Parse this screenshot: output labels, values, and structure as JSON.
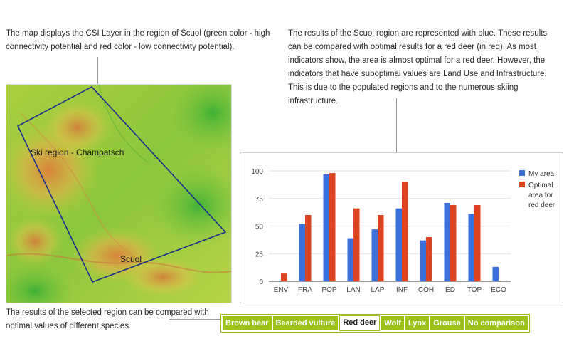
{
  "text": {
    "left_description": "The map displays the CSI Layer in the region of Scuol (green color - high connectivity potential and red color - low connectivity potential).",
    "right_description": "The results of the Scuol region are represented with blue. These results can be compared with optimal results for a red deer (in red). As most indicators show, the area is almost optimal for a red deer. However, the indicators that have suboptimal values are Land Use and Infrastructure. This is due to the populated regions and to the numerous skiing infrastructure.",
    "bottom_description": "The results of the selected region can be compared with optimal values of different species."
  },
  "map": {
    "label_ski": "Ski region - Champatsch",
    "label_town": "Scuol",
    "outline_color": "#1a2e8c"
  },
  "species_selector": {
    "options": [
      "Brown bear",
      "Bearded vulture",
      "Red deer",
      "Wolf",
      "Lynx",
      "Grouse",
      "No comparison"
    ],
    "selected": "Red deer"
  },
  "chart_data": {
    "type": "bar",
    "categories": [
      "ENV",
      "FRA",
      "POP",
      "LAN",
      "LAP",
      "INF",
      "COH",
      "ED",
      "TOP",
      "ECO"
    ],
    "series": [
      {
        "name": "My area",
        "color": "#3b6fd9",
        "values": [
          0,
          52,
          97,
          39,
          47,
          66,
          37,
          71,
          61,
          13
        ]
      },
      {
        "name": "Optimal area for red deer",
        "legend_lines": [
          "Optimal",
          "area for",
          "red deer"
        ],
        "color": "#dd4320",
        "values": [
          7,
          60,
          98,
          66,
          60,
          90,
          40,
          69,
          69,
          0
        ]
      }
    ],
    "yticks": [
      0,
      25,
      50,
      75,
      100
    ],
    "ylim": [
      0,
      100
    ],
    "grid": true,
    "legend_position": "right"
  }
}
